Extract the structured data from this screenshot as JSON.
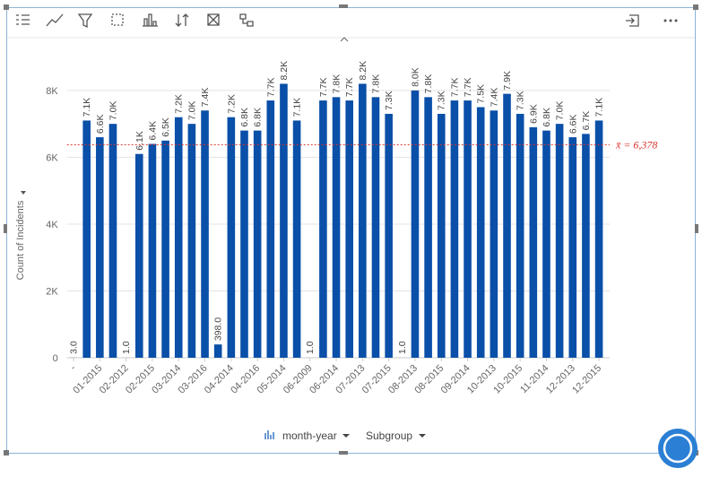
{
  "chart_data": {
    "type": "bar",
    "y_label": "Count of Incidents",
    "x_controls": [
      "month-year",
      "Subgroup"
    ],
    "categories": [
      "-",
      null,
      "01-2015",
      null,
      "02-2012",
      null,
      "02-2015",
      null,
      "03-2014",
      null,
      "03-2016",
      null,
      "04-2014",
      null,
      "04-2016",
      null,
      "05-2014",
      null,
      "06-2009",
      null,
      "06-2014",
      null,
      "07-2013",
      null,
      "07-2015",
      null,
      "08-2013",
      null,
      "08-2015",
      null,
      "09-2014",
      null,
      "10-2013",
      null,
      "10-2015",
      null,
      "11-2014",
      null,
      "12-2013",
      null,
      "12-2015"
    ],
    "values": [
      3,
      7100,
      6600,
      7000,
      1,
      6100,
      6400,
      6500,
      7200,
      7000,
      7400,
      398,
      7200,
      6800,
      6800,
      7700,
      8200,
      7100,
      1,
      7700,
      7800,
      7700,
      8200,
      7800,
      7300,
      1,
      8000,
      7800,
      7300,
      7700,
      7700,
      7500,
      7400,
      7900,
      7300,
      6900,
      6800,
      7000,
      6600,
      6700,
      7100
    ],
    "value_labels": [
      "3.0",
      "7.1K",
      "6.6K",
      "7.0K",
      "1.0",
      "6.1K",
      "6.4K",
      "6.5K",
      "7.2K",
      "7.0K",
      "7.4K",
      "398.0",
      "7.2K",
      "6.8K",
      "6.8K",
      "7.7K",
      "8.2K",
      "7.1K",
      "1.0",
      "7.7K",
      "7.8K",
      "7.7K",
      "8.2K",
      "7.8K",
      "7.3K",
      "1.0",
      "8.0K",
      "7.8K",
      "7.3K",
      "7.7K",
      "7.7K",
      "7.5K",
      "7.4K",
      "7.9K",
      "7.3K",
      "6.9K",
      "6.8K",
      "7.0K",
      "6.6K",
      "6.7K",
      "7.1K"
    ],
    "color": "#0a4fa8",
    "mean": {
      "value": 6378,
      "label": "x̄ = 6,378"
    },
    "mean_color": "#d9342b",
    "ylim": [
      0,
      9500
    ],
    "yticks": [
      0,
      {
        "value": 2000,
        "label": "2K"
      },
      {
        "value": 4000,
        "label": "4K"
      },
      {
        "value": 6000,
        "label": "6K"
      },
      {
        "value": 8000,
        "label": "8K"
      }
    ],
    "grid": true
  }
}
